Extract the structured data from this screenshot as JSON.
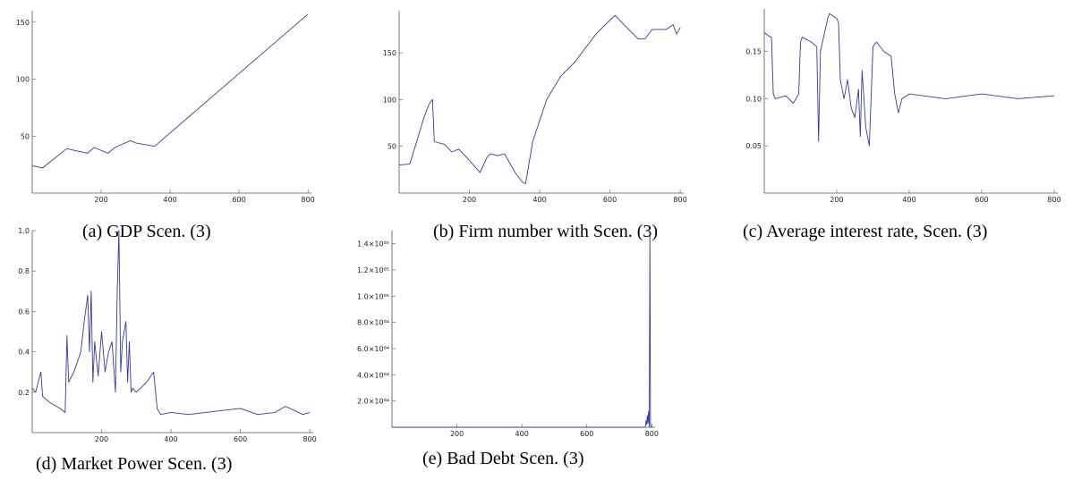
{
  "chart_data": [
    {
      "id": "gdp",
      "type": "line",
      "caption": "(a) GDP Scen. (3)",
      "xlim": [
        0,
        810
      ],
      "ylim": [
        0,
        160
      ],
      "xticks": [
        200,
        400,
        600,
        800
      ],
      "yticks": [
        50,
        100,
        150
      ],
      "ytick_labels": [
        "50",
        "100",
        "150"
      ],
      "grid": false,
      "x": [
        0,
        30,
        100,
        160,
        180,
        220,
        240,
        285,
        300,
        355,
        800
      ],
      "y": [
        24,
        22,
        39,
        35,
        40,
        35,
        40,
        46,
        44,
        41,
        157
      ]
    },
    {
      "id": "firms",
      "type": "line",
      "caption": "(b) Firm number with Scen. (3)",
      "xlim": [
        0,
        810
      ],
      "ylim": [
        0,
        195
      ],
      "xticks": [
        200,
        400,
        600,
        800
      ],
      "yticks": [
        50,
        100,
        150
      ],
      "ytick_labels": [
        "50",
        "100",
        "150"
      ],
      "grid": false,
      "x": [
        0,
        30,
        50,
        70,
        85,
        95,
        100,
        130,
        150,
        170,
        200,
        230,
        250,
        260,
        280,
        300,
        330,
        350,
        360,
        380,
        420,
        460,
        500,
        540,
        560,
        600,
        615,
        640,
        680,
        700,
        720,
        760,
        780,
        790,
        800
      ],
      "y": [
        30,
        31,
        55,
        80,
        95,
        100,
        55,
        52,
        44,
        47,
        35,
        22,
        38,
        42,
        40,
        42,
        22,
        12,
        10,
        55,
        100,
        125,
        140,
        160,
        170,
        185,
        190,
        180,
        165,
        165,
        175,
        175,
        180,
        170,
        177
      ]
    },
    {
      "id": "interest",
      "type": "line",
      "caption": "(c) Average interest rate, Scen. (3)",
      "xlim": [
        0,
        810
      ],
      "ylim": [
        0,
        0.195
      ],
      "xticks": [
        200,
        400,
        600,
        800
      ],
      "yticks": [
        0.05,
        0.1,
        0.15
      ],
      "ytick_labels": [
        "0.05",
        "0.10",
        "0.15"
      ],
      "grid": false,
      "x": [
        0,
        10,
        20,
        25,
        30,
        60,
        80,
        95,
        100,
        105,
        130,
        145,
        150,
        155,
        175,
        180,
        200,
        205,
        210,
        220,
        230,
        240,
        250,
        260,
        265,
        270,
        280,
        290,
        300,
        310,
        330,
        350,
        360,
        370,
        380,
        400,
        500,
        600,
        700,
        800
      ],
      "y": [
        0.17,
        0.167,
        0.165,
        0.105,
        0.1,
        0.103,
        0.095,
        0.105,
        0.16,
        0.165,
        0.16,
        0.155,
        0.055,
        0.15,
        0.185,
        0.19,
        0.185,
        0.18,
        0.12,
        0.1,
        0.12,
        0.09,
        0.08,
        0.11,
        0.06,
        0.13,
        0.07,
        0.05,
        0.155,
        0.16,
        0.15,
        0.145,
        0.105,
        0.085,
        0.1,
        0.105,
        0.1,
        0.105,
        0.1,
        0.103
      ]
    },
    {
      "id": "power",
      "type": "line",
      "caption": "(d) Market Power Scen. (3)",
      "xlim": [
        0,
        810
      ],
      "ylim": [
        0,
        1.0
      ],
      "xticks": [
        200,
        400,
        600,
        800
      ],
      "yticks": [
        0.2,
        0.4,
        0.6,
        0.8,
        1.0
      ],
      "ytick_labels": [
        "0.2",
        "0.4",
        "0.6",
        "0.8",
        "1.0"
      ],
      "grid": false,
      "x": [
        0,
        10,
        20,
        25,
        30,
        50,
        80,
        95,
        100,
        105,
        120,
        140,
        150,
        160,
        165,
        170,
        175,
        180,
        190,
        200,
        210,
        220,
        230,
        240,
        245,
        250,
        255,
        260,
        270,
        275,
        280,
        285,
        290,
        300,
        330,
        350,
        360,
        370,
        400,
        450,
        500,
        550,
        600,
        650,
        700,
        730,
        780,
        800
      ],
      "y": [
        0.22,
        0.2,
        0.27,
        0.3,
        0.18,
        0.15,
        0.12,
        0.1,
        0.48,
        0.25,
        0.3,
        0.4,
        0.55,
        0.68,
        0.4,
        0.7,
        0.25,
        0.45,
        0.28,
        0.5,
        0.3,
        0.4,
        0.45,
        0.2,
        0.7,
        1.0,
        0.3,
        0.45,
        0.55,
        0.25,
        0.45,
        0.2,
        0.22,
        0.2,
        0.25,
        0.3,
        0.12,
        0.09,
        0.1,
        0.09,
        0.1,
        0.11,
        0.12,
        0.09,
        0.1,
        0.13,
        0.09,
        0.1
      ]
    },
    {
      "id": "baddebt",
      "type": "line",
      "caption": "(e) Bad Debt Scen. (3)",
      "xlim": [
        0,
        810
      ],
      "ylim": [
        0,
        1.5e+65
      ],
      "xticks": [
        200,
        400,
        600,
        800
      ],
      "yticks": [
        2e+64,
        4e+64,
        6e+64,
        8e+64,
        1e+65,
        1.2e+65,
        1.4e+65
      ],
      "ytick_labels": [
        "2.0×10⁶⁴",
        "4.0×10⁶⁴",
        "6.0×10⁶⁴",
        "8.0×10⁶⁴",
        "1.0×10⁶⁵",
        "1.2×10⁶⁵",
        "1.4×10⁶⁵"
      ],
      "grid": false,
      "x": [
        0,
        780,
        782,
        784,
        786,
        788,
        790,
        792,
        794,
        796,
        798,
        800
      ],
      "y": [
        0,
        0,
        5e+63,
        2e+63,
        9e+63,
        3e+63,
        1.2e+64,
        0,
        1.49e+65,
        2e+63,
        0,
        0
      ]
    }
  ],
  "colors": {
    "line": "#3a3a9a",
    "axis": "#555555"
  }
}
